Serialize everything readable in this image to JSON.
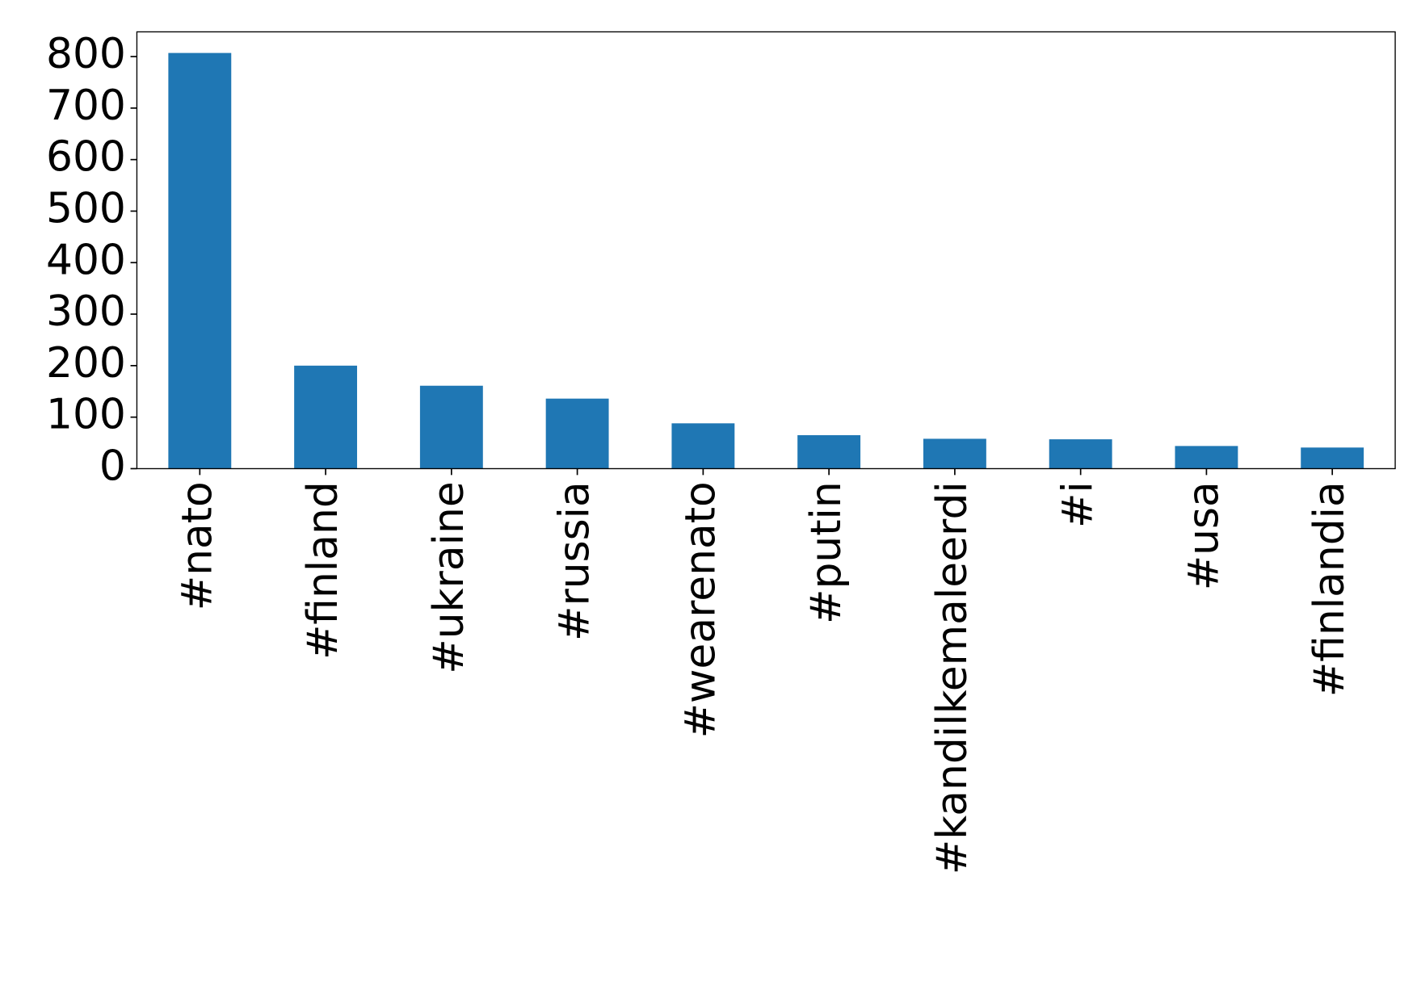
{
  "chart_data": {
    "type": "bar",
    "categories": [
      "#nato",
      "#finland",
      "#ukraine",
      "#russia",
      "#wearenato",
      "#putin",
      "#kandilkemaleerdi",
      "#i",
      "#usa",
      "#finlandia"
    ],
    "values": [
      807,
      200,
      161,
      136,
      88,
      65,
      58,
      57,
      44,
      41
    ],
    "color": "#1f77b4",
    "ylim": [
      0,
      848
    ],
    "yticks": [
      0,
      100,
      200,
      300,
      400,
      500,
      600,
      700,
      800
    ],
    "grid": false
  }
}
